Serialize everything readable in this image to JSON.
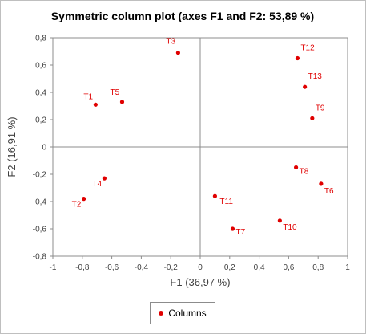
{
  "chart_data": {
    "type": "scatter",
    "title": "Symmetric column plot (axes F1 and F2: 53,89 %)",
    "xlabel": "F1 (36,97 %)",
    "ylabel": "F2 (16,91 %)",
    "xlim": [
      -1,
      1
    ],
    "ylim": [
      -0.8,
      0.8
    ],
    "xticks": [
      "-1",
      "-0,8",
      "-0,6",
      "-0,4",
      "-0,2",
      "0",
      "0,2",
      "0,4",
      "0,6",
      "0,8",
      "1"
    ],
    "yticks": [
      "-0,8",
      "-0,6",
      "-0,4",
      "-0,2",
      "0",
      "0,2",
      "0,4",
      "0,6",
      "0,8"
    ],
    "grid": false,
    "legend_position": "bottom",
    "series": [
      {
        "name": "Columns",
        "color": "#e00000",
        "points": [
          {
            "label": "T1",
            "x": -0.71,
            "y": 0.31
          },
          {
            "label": "T2",
            "x": -0.79,
            "y": -0.38
          },
          {
            "label": "T3",
            "x": -0.15,
            "y": 0.69
          },
          {
            "label": "T4",
            "x": -0.65,
            "y": -0.23
          },
          {
            "label": "T5",
            "x": -0.53,
            "y": 0.33
          },
          {
            "label": "T6",
            "x": 0.82,
            "y": -0.27
          },
          {
            "label": "T7",
            "x": 0.22,
            "y": -0.6
          },
          {
            "label": "T8",
            "x": 0.65,
            "y": -0.15
          },
          {
            "label": "T9",
            "x": 0.76,
            "y": 0.21
          },
          {
            "label": "T10",
            "x": 0.54,
            "y": -0.54
          },
          {
            "label": "T11",
            "x": 0.1,
            "y": -0.36
          },
          {
            "label": "T12",
            "x": 0.66,
            "y": 0.65
          },
          {
            "label": "T13",
            "x": 0.71,
            "y": 0.44
          }
        ]
      }
    ]
  }
}
